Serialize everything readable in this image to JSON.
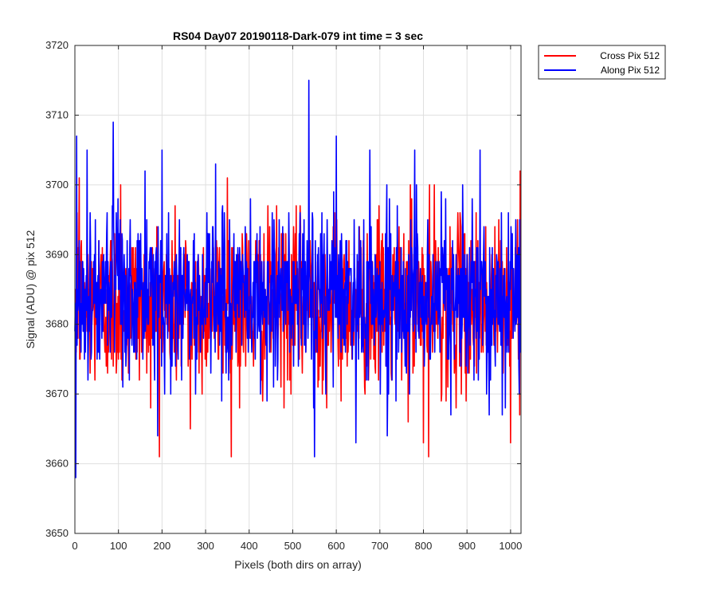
{
  "chart_data": {
    "type": "line",
    "title": "RS04 Day07 20190118-Dark-079 int time = 3 sec",
    "xlabel": "Pixels (both dirs on array)",
    "ylabel": "Signal (ADU) @ pix 512",
    "xlim": [
      0,
      1024
    ],
    "ylim": [
      3650,
      3720
    ],
    "xticks": [
      0,
      100,
      200,
      300,
      400,
      500,
      600,
      700,
      800,
      900,
      1000
    ],
    "yticks": [
      3650,
      3660,
      3670,
      3680,
      3690,
      3700,
      3710,
      3720
    ],
    "grid": true,
    "legend_position": "outside-top-right",
    "series_summary": {
      "count": 1024,
      "note": "noisy dark-frame signal, one value per pixel"
    },
    "series": [
      {
        "name": "Cross Pix 512",
        "color": "#ff0000",
        "mean": 3683,
        "stddev": 6,
        "min": 3661,
        "max": 3702,
        "anchors": [
          {
            "x": 0,
            "y": 3679
          },
          {
            "x": 5,
            "y": 3696
          },
          {
            "x": 10,
            "y": 3701
          },
          {
            "x": 105,
            "y": 3700
          },
          {
            "x": 265,
            "y": 3665
          },
          {
            "x": 350,
            "y": 3701
          },
          {
            "x": 770,
            "y": 3700
          },
          {
            "x": 800,
            "y": 3663
          },
          {
            "x": 812,
            "y": 3661
          },
          {
            "x": 825,
            "y": 3700
          },
          {
            "x": 1000,
            "y": 3663
          },
          {
            "x": 1022,
            "y": 3702
          }
        ]
      },
      {
        "name": "Along Pix 512",
        "color": "#0000ff",
        "mean": 3684,
        "stddev": 6,
        "min": 3658,
        "max": 3715,
        "anchors": [
          {
            "x": 0,
            "y": 3679
          },
          {
            "x": 2,
            "y": 3658
          },
          {
            "x": 4,
            "y": 3707
          },
          {
            "x": 28,
            "y": 3705
          },
          {
            "x": 88,
            "y": 3709
          },
          {
            "x": 190,
            "y": 3664
          },
          {
            "x": 200,
            "y": 3705
          },
          {
            "x": 537,
            "y": 3715
          },
          {
            "x": 550,
            "y": 3661
          },
          {
            "x": 600,
            "y": 3707
          },
          {
            "x": 645,
            "y": 3663
          },
          {
            "x": 780,
            "y": 3705
          },
          {
            "x": 930,
            "y": 3705
          },
          {
            "x": 1020,
            "y": 3670
          }
        ]
      }
    ]
  }
}
